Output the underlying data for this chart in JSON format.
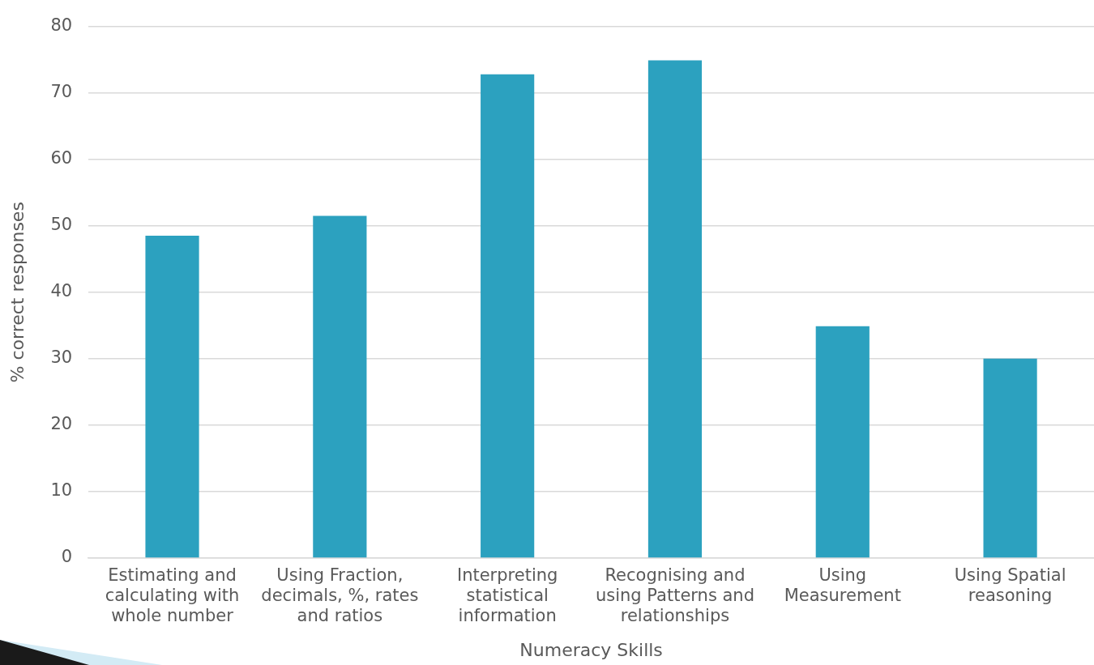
{
  "chart_data": {
    "type": "bar",
    "xlabel": "Numeracy Skills",
    "ylabel": "% correct responses",
    "categories": [
      "Estimating and calculating with whole number",
      "Using Fraction, decimals, %, rates and ratios",
      "Interpreting statistical information",
      "Recognising and using Patterns and relationships",
      "Using Measurement",
      "Using Spatial reasoning"
    ],
    "values": [
      48.5,
      51.5,
      72.8,
      74.9,
      34.9,
      30.0
    ],
    "color": "#2ca1bf",
    "ylim": [
      0,
      80
    ],
    "yticks": [
      0,
      10,
      20,
      30,
      40,
      50,
      60,
      70,
      80
    ],
    "grid": "y",
    "legend": false
  }
}
